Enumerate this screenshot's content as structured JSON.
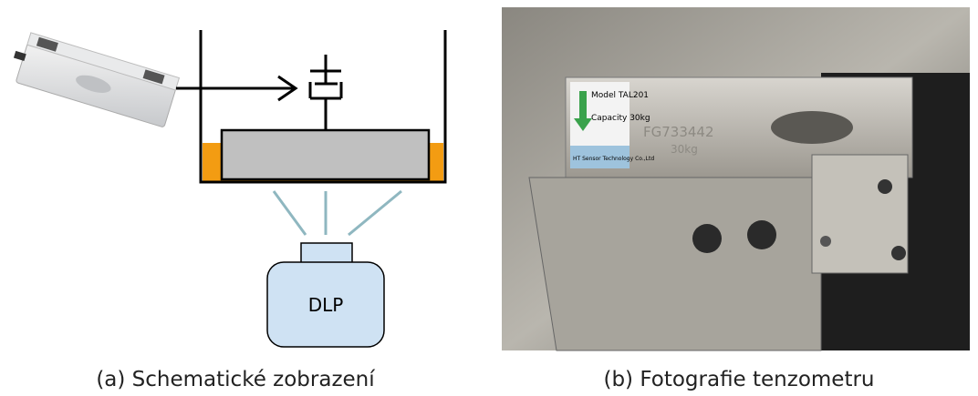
{
  "schematic": {
    "projector_label": "DLP",
    "caption": "(a) Schematické zobrazení"
  },
  "photo": {
    "label_model": "Model TAL201",
    "label_capacity": "Capacity 30kg",
    "label_maker": "HT Sensor Technology Co.,Ltd",
    "serial": "FG733442",
    "engraved_capacity": "30kg",
    "caption": "(b) Fotografie tenzometru"
  }
}
